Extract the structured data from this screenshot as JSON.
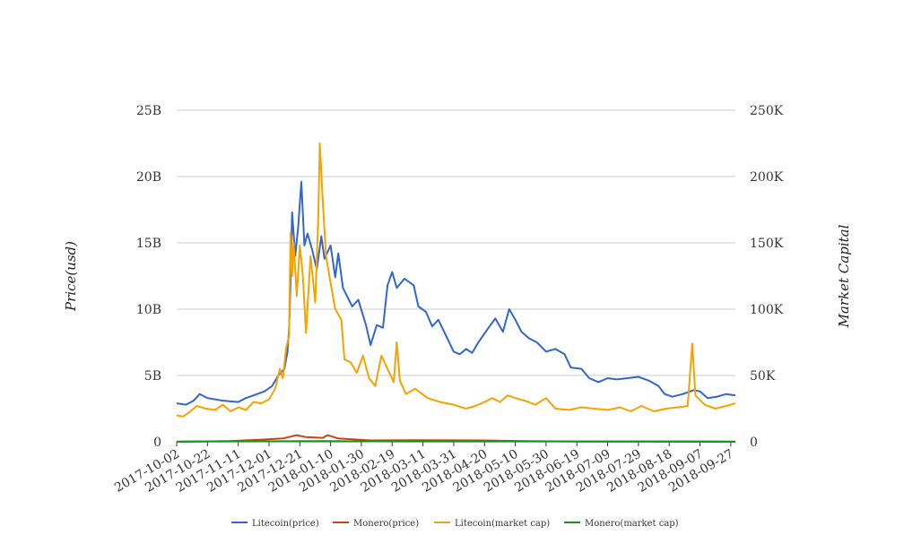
{
  "chart_data": {
    "type": "line",
    "title": "",
    "ylabel_left": "Price(usd)",
    "ylabel_right": "Market Capital",
    "grid": true,
    "legend_position": "bottom",
    "x_start": "2017-10-02",
    "x_end": "2018-09-30",
    "x_ticks": [
      "2017-10-02",
      "2017-10-22",
      "2017-11-11",
      "2017-12-01",
      "2017-12-21",
      "2018-01-10",
      "2018-01-30",
      "2018-02-19",
      "2018-03-11",
      "2018-03-31",
      "2018-04-20",
      "2018-05-10",
      "2018-05-30",
      "2018-06-19",
      "2018-07-09",
      "2018-07-29",
      "2018-08-18",
      "2018-09-07",
      "2018-09-27"
    ],
    "y_left": {
      "min": 0,
      "max": 25000000000,
      "ticks": [
        0,
        5000000000,
        10000000000,
        15000000000,
        20000000000,
        25000000000
      ],
      "tick_labels": [
        "0",
        "5B",
        "10B",
        "15B",
        "20B",
        "25B"
      ]
    },
    "y_right": {
      "min": 0,
      "max": 250000,
      "ticks": [
        0,
        50000,
        100000,
        150000,
        200000,
        250000
      ],
      "tick_labels": [
        "0",
        "50K",
        "100K",
        "150K",
        "200K",
        "250K"
      ]
    },
    "series": [
      {
        "name": "Litecoin(price)",
        "axis": "left",
        "color": "#3366cc",
        "points": [
          [
            "2017-10-02",
            2900000000
          ],
          [
            "2017-10-08",
            2800000000
          ],
          [
            "2017-10-13",
            3100000000
          ],
          [
            "2017-10-17",
            3600000000
          ],
          [
            "2017-10-22",
            3300000000
          ],
          [
            "2017-11-01",
            3100000000
          ],
          [
            "2017-11-11",
            3000000000
          ],
          [
            "2017-11-16",
            3300000000
          ],
          [
            "2017-11-21",
            3500000000
          ],
          [
            "2017-11-28",
            3800000000
          ],
          [
            "2017-12-03",
            4200000000
          ],
          [
            "2017-12-07",
            5000000000
          ],
          [
            "2017-12-11",
            5500000000
          ],
          [
            "2017-12-13",
            6800000000
          ],
          [
            "2017-12-14",
            8500000000
          ],
          [
            "2017-12-15",
            12000000000
          ],
          [
            "2017-12-16",
            17300000000
          ],
          [
            "2017-12-18",
            14000000000
          ],
          [
            "2017-12-20",
            16300000000
          ],
          [
            "2017-12-22",
            19600000000
          ],
          [
            "2017-12-24",
            14800000000
          ],
          [
            "2017-12-26",
            15700000000
          ],
          [
            "2017-12-29",
            14500000000
          ],
          [
            "2018-01-01",
            13000000000
          ],
          [
            "2018-01-04",
            15500000000
          ],
          [
            "2018-01-06",
            13800000000
          ],
          [
            "2018-01-10",
            14800000000
          ],
          [
            "2018-01-13",
            12400000000
          ],
          [
            "2018-01-15",
            14200000000
          ],
          [
            "2018-01-18",
            11600000000
          ],
          [
            "2018-01-24",
            10200000000
          ],
          [
            "2018-01-28",
            10700000000
          ],
          [
            "2018-02-02",
            8800000000
          ],
          [
            "2018-02-05",
            7300000000
          ],
          [
            "2018-02-09",
            8800000000
          ],
          [
            "2018-02-13",
            8600000000
          ],
          [
            "2018-02-16",
            11800000000
          ],
          [
            "2018-02-19",
            12800000000
          ],
          [
            "2018-02-22",
            11600000000
          ],
          [
            "2018-02-27",
            12300000000
          ],
          [
            "2018-03-05",
            11800000000
          ],
          [
            "2018-03-08",
            10200000000
          ],
          [
            "2018-03-13",
            9800000000
          ],
          [
            "2018-03-17",
            8700000000
          ],
          [
            "2018-03-21",
            9200000000
          ],
          [
            "2018-03-26",
            8000000000
          ],
          [
            "2018-03-31",
            6800000000
          ],
          [
            "2018-04-04",
            6600000000
          ],
          [
            "2018-04-08",
            7000000000
          ],
          [
            "2018-04-12",
            6700000000
          ],
          [
            "2018-04-16",
            7500000000
          ],
          [
            "2018-04-22",
            8500000000
          ],
          [
            "2018-04-27",
            9300000000
          ],
          [
            "2018-05-02",
            8300000000
          ],
          [
            "2018-05-06",
            10000000000
          ],
          [
            "2018-05-10",
            9200000000
          ],
          [
            "2018-05-14",
            8300000000
          ],
          [
            "2018-05-19",
            7800000000
          ],
          [
            "2018-05-24",
            7500000000
          ],
          [
            "2018-05-30",
            6800000000
          ],
          [
            "2018-06-05",
            7000000000
          ],
          [
            "2018-06-11",
            6600000000
          ],
          [
            "2018-06-15",
            5600000000
          ],
          [
            "2018-06-22",
            5500000000
          ],
          [
            "2018-06-27",
            4800000000
          ],
          [
            "2018-07-03",
            4500000000
          ],
          [
            "2018-07-09",
            4800000000
          ],
          [
            "2018-07-15",
            4700000000
          ],
          [
            "2018-07-22",
            4800000000
          ],
          [
            "2018-07-29",
            4900000000
          ],
          [
            "2018-08-05",
            4600000000
          ],
          [
            "2018-08-11",
            4200000000
          ],
          [
            "2018-08-15",
            3600000000
          ],
          [
            "2018-08-20",
            3400000000
          ],
          [
            "2018-08-27",
            3600000000
          ],
          [
            "2018-09-03",
            3900000000
          ],
          [
            "2018-09-07",
            3800000000
          ],
          [
            "2018-09-12",
            3300000000
          ],
          [
            "2018-09-18",
            3400000000
          ],
          [
            "2018-09-24",
            3600000000
          ],
          [
            "2018-09-30",
            3500000000
          ]
        ]
      },
      {
        "name": "Monero(price)",
        "axis": "left",
        "color": "#cc4411",
        "points": [
          [
            "2017-10-02",
            0
          ],
          [
            "2017-11-05",
            50000000
          ],
          [
            "2017-11-25",
            150000000
          ],
          [
            "2017-12-10",
            250000000
          ],
          [
            "2017-12-19",
            500000000
          ],
          [
            "2017-12-25",
            350000000
          ],
          [
            "2018-01-05",
            300000000
          ],
          [
            "2018-01-08",
            500000000
          ],
          [
            "2018-01-15",
            250000000
          ],
          [
            "2018-02-05",
            100000000
          ],
          [
            "2018-03-05",
            120000000
          ],
          [
            "2018-04-20",
            100000000
          ],
          [
            "2018-05-15",
            50000000
          ],
          [
            "2018-06-19",
            20000000
          ],
          [
            "2018-09-30",
            0
          ]
        ]
      },
      {
        "name": "Litecoin(market cap)",
        "axis": "right",
        "color": "#f5a300",
        "points": [
          [
            "2017-10-02",
            20000
          ],
          [
            "2017-10-06",
            19000
          ],
          [
            "2017-10-10",
            22000
          ],
          [
            "2017-10-15",
            27000
          ],
          [
            "2017-10-21",
            25000
          ],
          [
            "2017-10-27",
            24000
          ],
          [
            "2017-11-01",
            28000
          ],
          [
            "2017-11-06",
            23000
          ],
          [
            "2017-11-11",
            26000
          ],
          [
            "2017-11-16",
            24000
          ],
          [
            "2017-11-21",
            30000
          ],
          [
            "2017-11-26",
            29000
          ],
          [
            "2017-12-01",
            32000
          ],
          [
            "2017-12-05",
            40000
          ],
          [
            "2017-12-08",
            55000
          ],
          [
            "2017-12-10",
            48000
          ],
          [
            "2017-12-12",
            70000
          ],
          [
            "2017-12-14",
            80000
          ],
          [
            "2017-12-15",
            158000
          ],
          [
            "2017-12-16",
            125000
          ],
          [
            "2017-12-17",
            150000
          ],
          [
            "2017-12-19",
            110000
          ],
          [
            "2017-12-21",
            148000
          ],
          [
            "2017-12-23",
            125000
          ],
          [
            "2017-12-25",
            82000
          ],
          [
            "2017-12-28",
            140000
          ],
          [
            "2017-12-31",
            105000
          ],
          [
            "2018-01-02",
            170000
          ],
          [
            "2018-01-03",
            225000
          ],
          [
            "2018-01-05",
            180000
          ],
          [
            "2018-01-07",
            140000
          ],
          [
            "2018-01-10",
            120000
          ],
          [
            "2018-01-13",
            100000
          ],
          [
            "2018-01-17",
            92000
          ],
          [
            "2018-01-19",
            62000
          ],
          [
            "2018-01-23",
            60000
          ],
          [
            "2018-01-27",
            52000
          ],
          [
            "2018-01-31",
            65000
          ],
          [
            "2018-02-04",
            48000
          ],
          [
            "2018-02-08",
            42000
          ],
          [
            "2018-02-12",
            65000
          ],
          [
            "2018-02-16",
            55000
          ],
          [
            "2018-02-20",
            45000
          ],
          [
            "2018-02-22",
            75000
          ],
          [
            "2018-02-24",
            46000
          ],
          [
            "2018-02-28",
            36000
          ],
          [
            "2018-03-06",
            40000
          ],
          [
            "2018-03-14",
            33000
          ],
          [
            "2018-03-22",
            30000
          ],
          [
            "2018-03-31",
            28000
          ],
          [
            "2018-04-08",
            25000
          ],
          [
            "2018-04-14",
            27000
          ],
          [
            "2018-04-20",
            30000
          ],
          [
            "2018-04-25",
            33000
          ],
          [
            "2018-04-30",
            30000
          ],
          [
            "2018-05-05",
            35000
          ],
          [
            "2018-05-10",
            33000
          ],
          [
            "2018-05-16",
            31000
          ],
          [
            "2018-05-23",
            28000
          ],
          [
            "2018-05-30",
            33000
          ],
          [
            "2018-06-05",
            25000
          ],
          [
            "2018-06-14",
            24000
          ],
          [
            "2018-06-22",
            26000
          ],
          [
            "2018-06-30",
            25000
          ],
          [
            "2018-07-09",
            24000
          ],
          [
            "2018-07-17",
            26000
          ],
          [
            "2018-07-24",
            23000
          ],
          [
            "2018-07-31",
            27000
          ],
          [
            "2018-08-08",
            23000
          ],
          [
            "2018-08-16",
            25000
          ],
          [
            "2018-08-24",
            26000
          ],
          [
            "2018-08-30",
            27000
          ],
          [
            "2018-09-02",
            74000
          ],
          [
            "2018-09-04",
            35000
          ],
          [
            "2018-09-10",
            28000
          ],
          [
            "2018-09-17",
            25000
          ],
          [
            "2018-09-24",
            27000
          ],
          [
            "2018-09-30",
            29000
          ]
        ]
      },
      {
        "name": "Monero(market cap)",
        "axis": "right",
        "color": "#109618",
        "points": [
          [
            "2017-10-02",
            200
          ],
          [
            "2017-12-15",
            400
          ],
          [
            "2018-01-05",
            500
          ],
          [
            "2018-03-01",
            300
          ],
          [
            "2018-09-30",
            200
          ]
        ]
      }
    ]
  }
}
